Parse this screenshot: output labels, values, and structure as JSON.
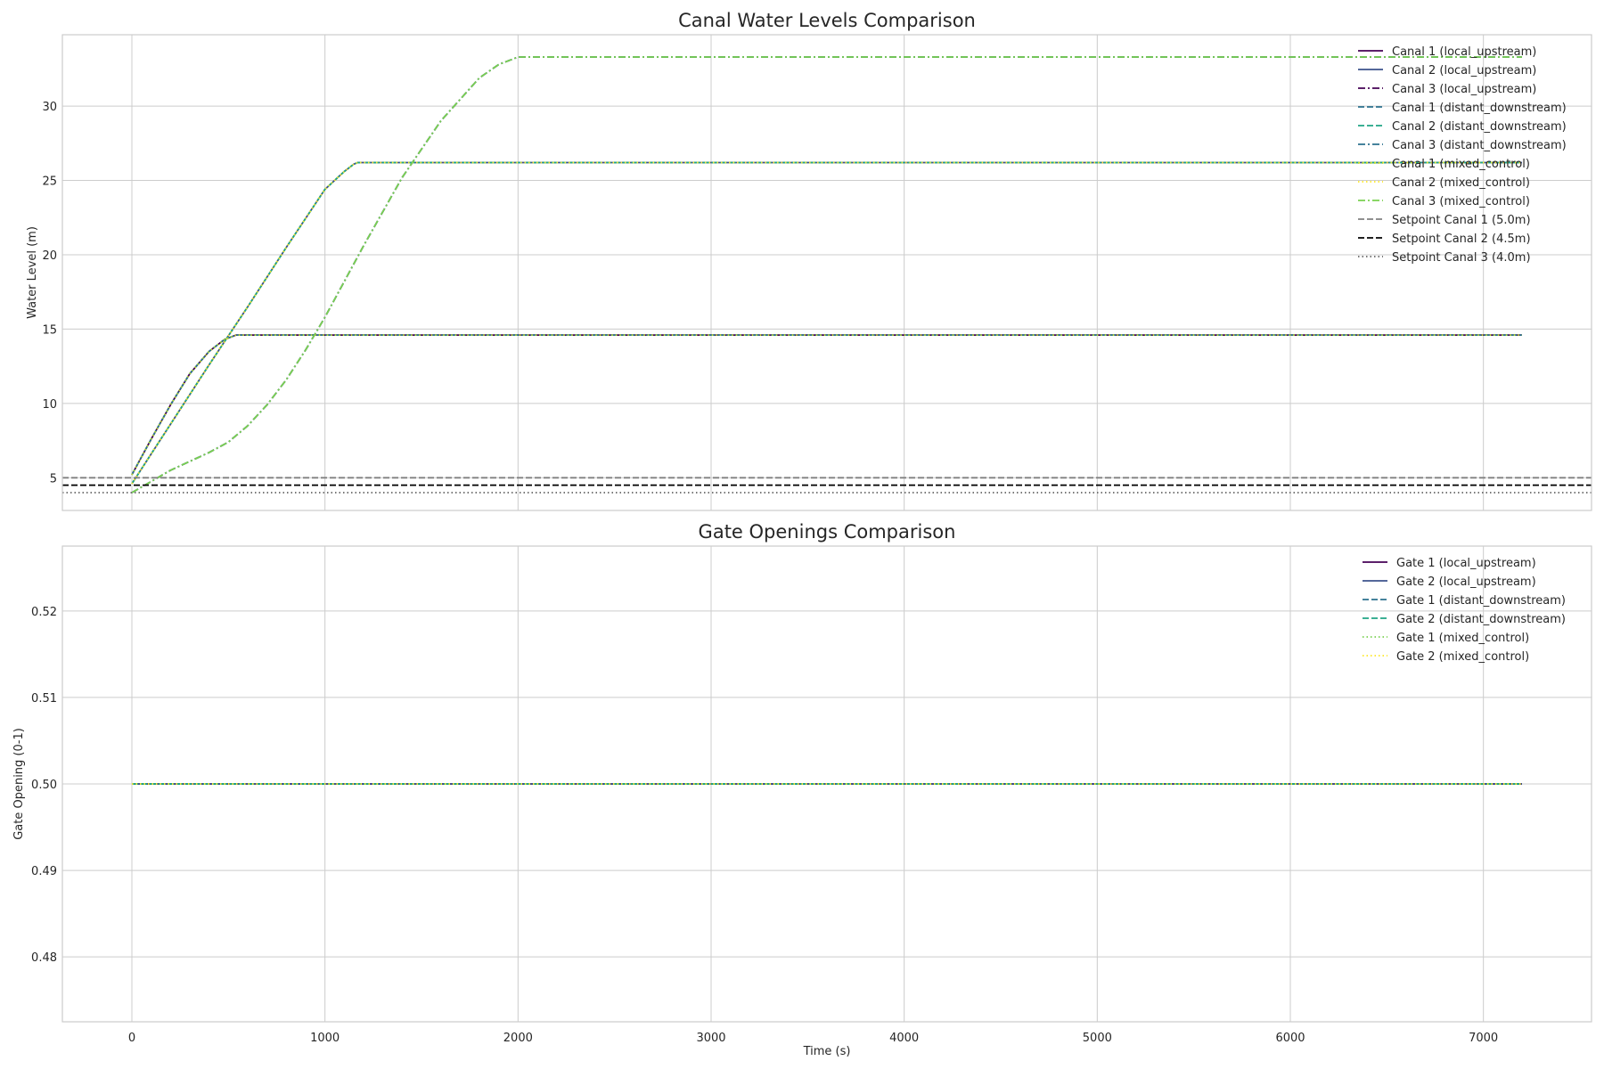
{
  "chart_data": [
    {
      "type": "line",
      "title": "Canal Water Levels Comparison",
      "xlabel": "",
      "ylabel": "Water Level (m)",
      "xlim": [
        -360,
        7560
      ],
      "ylim": [
        2.8,
        34.8
      ],
      "xticks": [
        0,
        1000,
        2000,
        3000,
        4000,
        5000,
        6000,
        7000
      ],
      "xtick_labels": [
        "",
        "",
        "",
        "",
        "",
        "",
        "",
        ""
      ],
      "yticks": [
        5,
        10,
        15,
        20,
        25,
        30
      ],
      "ytick_labels": [
        "5",
        "10",
        "15",
        "20",
        "25",
        "30"
      ],
      "grid": true,
      "legend_position": "top-right",
      "series": [
        {
          "name": "Canal 1 (local_upstream)",
          "color": "#440154",
          "style": "solid",
          "x": [
            0,
            100,
            200,
            300,
            400,
            480,
            540,
            560,
            7200
          ],
          "y": [
            5.2,
            7.6,
            9.9,
            12.0,
            13.5,
            14.3,
            14.6,
            14.6,
            14.6
          ]
        },
        {
          "name": "Canal 2 (local_upstream)",
          "color": "#3b528b",
          "style": "solid",
          "x": [
            0,
            200,
            400,
            600,
            800,
            1000,
            1100,
            1150,
            1170,
            7200
          ],
          "y": [
            4.6,
            8.6,
            12.6,
            16.5,
            20.5,
            24.4,
            25.6,
            26.1,
            26.2,
            26.2
          ]
        },
        {
          "name": "Canal 3 (local_upstream)",
          "color": "#440154",
          "style": "dashdot",
          "x": [
            0,
            200,
            400,
            500,
            600,
            700,
            800,
            900,
            1000,
            1200,
            1400,
            1600,
            1800,
            1900,
            1980,
            2000,
            7200
          ],
          "y": [
            4.0,
            5.5,
            6.7,
            7.4,
            8.5,
            9.9,
            11.6,
            13.6,
            15.8,
            20.6,
            25.2,
            29.0,
            31.9,
            32.8,
            33.2,
            33.3,
            33.3
          ]
        },
        {
          "name": "Canal 1 (distant_downstream)",
          "color": "#2c728e",
          "style": "dashed",
          "x": [
            0,
            100,
            200,
            300,
            400,
            480,
            540,
            560,
            7200
          ],
          "y": [
            5.2,
            7.6,
            9.9,
            12.0,
            13.5,
            14.3,
            14.6,
            14.6,
            14.6
          ]
        },
        {
          "name": "Canal 2 (distant_downstream)",
          "color": "#21a585",
          "style": "dashed",
          "x": [
            0,
            200,
            400,
            600,
            800,
            1000,
            1100,
            1150,
            1170,
            7200
          ],
          "y": [
            4.6,
            8.6,
            12.6,
            16.5,
            20.5,
            24.4,
            25.6,
            26.1,
            26.2,
            26.2
          ]
        },
        {
          "name": "Canal 3 (distant_downstream)",
          "color": "#2c728e",
          "style": "dashdot",
          "x": [
            0,
            200,
            400,
            500,
            600,
            700,
            800,
            900,
            1000,
            1200,
            1400,
            1600,
            1800,
            1900,
            1980,
            2000,
            7200
          ],
          "y": [
            4.0,
            5.5,
            6.7,
            7.4,
            8.5,
            9.9,
            11.6,
            13.6,
            15.8,
            20.6,
            25.2,
            29.0,
            31.9,
            32.8,
            33.2,
            33.3,
            33.3
          ]
        },
        {
          "name": "Canal 1 (mixed_control)",
          "color": "#bddf26",
          "style": "dotted",
          "x": [
            0,
            100,
            200,
            300,
            400,
            480,
            540,
            560,
            7200
          ],
          "y": [
            5.2,
            7.6,
            9.9,
            12.0,
            13.5,
            14.3,
            14.6,
            14.6,
            14.6
          ]
        },
        {
          "name": "Canal 2 (mixed_control)",
          "color": "#fde725",
          "style": "dotted",
          "x": [
            0,
            200,
            400,
            600,
            800,
            1000,
            1100,
            1150,
            1170,
            7200
          ],
          "y": [
            4.6,
            8.6,
            12.6,
            16.5,
            20.5,
            24.4,
            25.6,
            26.1,
            26.2,
            26.2
          ]
        },
        {
          "name": "Canal 3 (mixed_control)",
          "color": "#7ad151",
          "style": "dashdot",
          "x": [
            0,
            200,
            400,
            500,
            600,
            700,
            800,
            900,
            1000,
            1200,
            1400,
            1600,
            1800,
            1900,
            1980,
            2000,
            7200
          ],
          "y": [
            4.0,
            5.5,
            6.7,
            7.4,
            8.5,
            9.9,
            11.6,
            13.6,
            15.8,
            20.6,
            25.2,
            29.0,
            31.9,
            32.8,
            33.2,
            33.3,
            33.3
          ]
        },
        {
          "name": "Setpoint Canal 1 (5.0m)",
          "color": "#808080",
          "style": "dashed",
          "x": [
            -360,
            7560
          ],
          "y": [
            5.0,
            5.0
          ],
          "axhline": true
        },
        {
          "name": "Setpoint Canal 2 (4.5m)",
          "color": "#000000",
          "style": "dashed",
          "x": [
            -360,
            7560
          ],
          "y": [
            4.5,
            4.5
          ],
          "axhline": true
        },
        {
          "name": "Setpoint Canal 3 (4.0m)",
          "color": "#666666",
          "style": "dotted",
          "x": [
            -360,
            7560
          ],
          "y": [
            4.0,
            4.0
          ],
          "axhline": true
        }
      ]
    },
    {
      "type": "line",
      "title": "Gate Openings Comparison",
      "xlabel": "Time (s)",
      "ylabel": "Gate Opening (0-1)",
      "xlim": [
        -360,
        7560
      ],
      "ylim": [
        0.4725,
        0.5275
      ],
      "xticks": [
        0,
        1000,
        2000,
        3000,
        4000,
        5000,
        6000,
        7000
      ],
      "xtick_labels": [
        "0",
        "1000",
        "2000",
        "3000",
        "4000",
        "5000",
        "6000",
        "7000"
      ],
      "yticks": [
        0.48,
        0.49,
        0.5,
        0.51,
        0.52
      ],
      "ytick_labels": [
        "0.48",
        "0.49",
        "0.50",
        "0.51",
        "0.52"
      ],
      "grid": true,
      "legend_position": "top-right",
      "series": [
        {
          "name": "Gate 1 (local_upstream)",
          "color": "#440154",
          "style": "solid",
          "x": [
            0,
            7200
          ],
          "y": [
            0.5,
            0.5
          ]
        },
        {
          "name": "Gate 2 (local_upstream)",
          "color": "#3b528b",
          "style": "solid",
          "x": [
            0,
            7200
          ],
          "y": [
            0.5,
            0.5
          ]
        },
        {
          "name": "Gate 1 (distant_downstream)",
          "color": "#2c728e",
          "style": "dashed",
          "x": [
            0,
            7200
          ],
          "y": [
            0.5,
            0.5
          ]
        },
        {
          "name": "Gate 2 (distant_downstream)",
          "color": "#21a585",
          "style": "dashed",
          "x": [
            0,
            7200
          ],
          "y": [
            0.5,
            0.5
          ]
        },
        {
          "name": "Gate 1 (mixed_control)",
          "color": "#7ad151",
          "style": "dotted",
          "x": [
            0,
            7200
          ],
          "y": [
            0.5,
            0.5
          ]
        },
        {
          "name": "Gate 2 (mixed_control)",
          "color": "#fde725",
          "style": "dotted",
          "x": [
            0,
            7200
          ],
          "y": [
            0.5,
            0.5
          ]
        }
      ]
    }
  ]
}
